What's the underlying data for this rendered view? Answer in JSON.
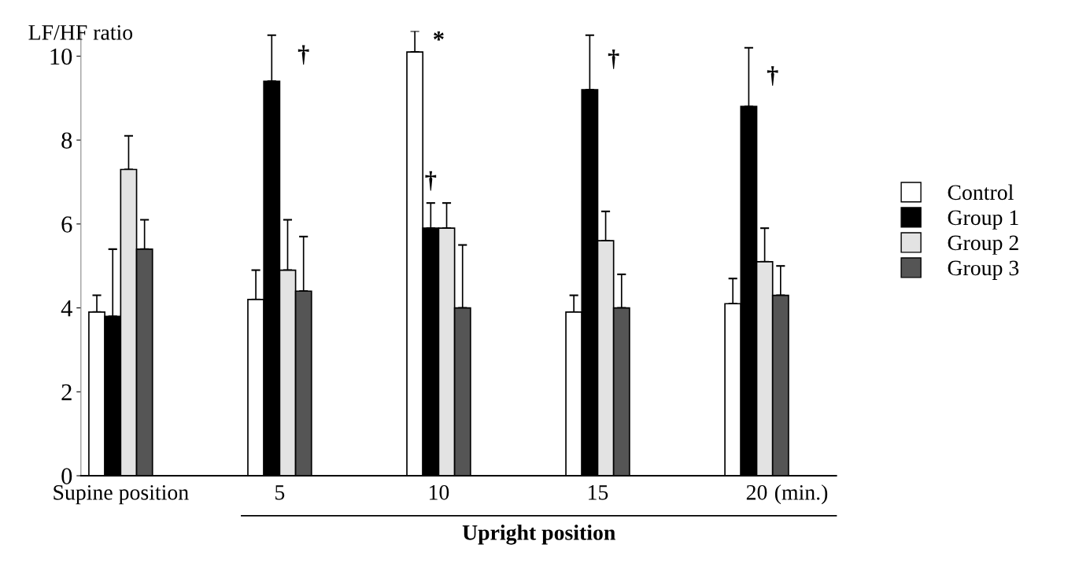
{
  "chart_data": {
    "type": "bar",
    "ylabel": "LF/HF ratio",
    "categories": [
      "Supine position",
      "5",
      "10",
      "15",
      "20"
    ],
    "series": [
      {
        "name": "Control",
        "color": "#ffffff",
        "values": [
          3.9,
          4.2,
          10.1,
          3.9,
          4.1
        ],
        "errors": [
          [
            3.9,
            4.3
          ],
          [
            4.2,
            4.9
          ],
          [
            10.1,
            10.6
          ],
          [
            3.9,
            4.3
          ],
          [
            4.1,
            4.7
          ]
        ]
      },
      {
        "name": "Group 1",
        "color": "#000000",
        "values": [
          3.8,
          9.4,
          5.9,
          9.2,
          8.8
        ],
        "errors": [
          [
            3.8,
            5.4
          ],
          [
            9.4,
            10.5
          ],
          [
            5.9,
            6.5
          ],
          [
            9.2,
            10.5
          ],
          [
            8.8,
            10.2
          ]
        ]
      },
      {
        "name": "Group 2",
        "color": "#e3e3e3",
        "values": [
          7.3,
          4.9,
          5.9,
          5.6,
          5.1
        ],
        "errors": [
          [
            7.3,
            8.1
          ],
          [
            4.9,
            6.1
          ],
          [
            5.9,
            6.5
          ],
          [
            5.6,
            6.3
          ],
          [
            5.1,
            5.9
          ]
        ]
      },
      {
        "name": "Group 3",
        "color": "#555555",
        "values": [
          5.4,
          4.4,
          4.0,
          4.0,
          4.3
        ],
        "errors": [
          [
            5.4,
            6.1
          ],
          [
            4.4,
            5.7
          ],
          [
            4.0,
            5.5
          ],
          [
            4.0,
            4.8
          ],
          [
            4.3,
            5.0
          ]
        ]
      }
    ],
    "ylim": [
      0,
      10.6
    ],
    "yticks": [
      0,
      2,
      4,
      6,
      8,
      10
    ],
    "legend": "right",
    "grid": false,
    "annotations": [
      "†",
      "*",
      "†",
      "†",
      "†",
      "(min.)",
      "Upright position"
    ]
  }
}
